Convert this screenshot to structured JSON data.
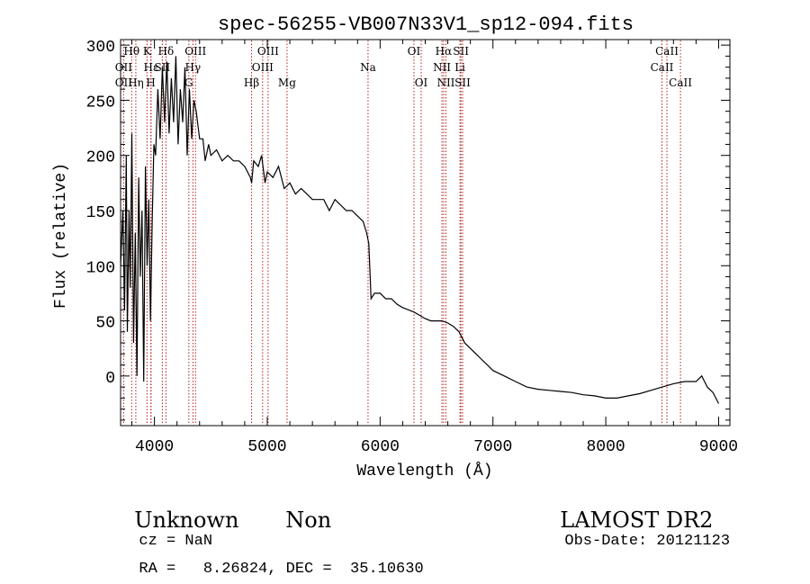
{
  "chart_data": {
    "type": "line",
    "title": "spec-56255-VB007N33V1_sp12-094.fits",
    "xlabel": "Wavelength (Å)",
    "ylabel": "Flux (relative)",
    "xlim": [
      3700,
      9100
    ],
    "ylim": [
      -45,
      305
    ],
    "xticks": [
      4000,
      5000,
      6000,
      7000,
      8000,
      9000
    ],
    "yticks": [
      0,
      50,
      100,
      150,
      200,
      250,
      300
    ],
    "grid": false,
    "line_color": "#000000",
    "marker_color": "#b22222",
    "series": [
      {
        "points": [
          [
            3700,
            100
          ],
          [
            3720,
            150
          ],
          [
            3735,
            60
          ],
          [
            3750,
            200
          ],
          [
            3760,
            40
          ],
          [
            3775,
            150
          ],
          [
            3785,
            80
          ],
          [
            3800,
            220
          ],
          [
            3815,
            30
          ],
          [
            3830,
            130
          ],
          [
            3845,
            0
          ],
          [
            3860,
            180
          ],
          [
            3875,
            90
          ],
          [
            3890,
            150
          ],
          [
            3905,
            -5
          ],
          [
            3920,
            190
          ],
          [
            3935,
            100
          ],
          [
            3950,
            160
          ],
          [
            3965,
            50
          ],
          [
            3980,
            140
          ],
          [
            3995,
            210
          ],
          [
            4010,
            200
          ],
          [
            4030,
            260
          ],
          [
            4050,
            215
          ],
          [
            4070,
            280
          ],
          [
            4090,
            230
          ],
          [
            4110,
            285
          ],
          [
            4130,
            220
          ],
          [
            4150,
            270
          ],
          [
            4170,
            230
          ],
          [
            4190,
            290
          ],
          [
            4210,
            210
          ],
          [
            4230,
            260
          ],
          [
            4250,
            230
          ],
          [
            4270,
            280
          ],
          [
            4290,
            200
          ],
          [
            4310,
            260
          ],
          [
            4330,
            215
          ],
          [
            4350,
            250
          ],
          [
            4370,
            240
          ],
          [
            4400,
            215
          ],
          [
            4430,
            215
          ],
          [
            4450,
            195
          ],
          [
            4480,
            210
          ],
          [
            4500,
            200
          ],
          [
            4550,
            205
          ],
          [
            4600,
            195
          ],
          [
            4650,
            200
          ],
          [
            4700,
            195
          ],
          [
            4750,
            195
          ],
          [
            4800,
            190
          ],
          [
            4850,
            180
          ],
          [
            4861,
            175
          ],
          [
            4880,
            195
          ],
          [
            4920,
            190
          ],
          [
            4950,
            200
          ],
          [
            4980,
            175
          ],
          [
            5000,
            185
          ],
          [
            5050,
            180
          ],
          [
            5100,
            190
          ],
          [
            5150,
            170
          ],
          [
            5200,
            175
          ],
          [
            5250,
            165
          ],
          [
            5300,
            170
          ],
          [
            5350,
            165
          ],
          [
            5400,
            160
          ],
          [
            5450,
            160
          ],
          [
            5500,
            160
          ],
          [
            5550,
            150
          ],
          [
            5600,
            160
          ],
          [
            5650,
            155
          ],
          [
            5700,
            150
          ],
          [
            5750,
            150
          ],
          [
            5800,
            145
          ],
          [
            5850,
            140
          ],
          [
            5880,
            130
          ],
          [
            5900,
            120
          ],
          [
            5920,
            70
          ],
          [
            5950,
            75
          ],
          [
            6000,
            75
          ],
          [
            6050,
            70
          ],
          [
            6100,
            70
          ],
          [
            6150,
            65
          ],
          [
            6200,
            62
          ],
          [
            6250,
            60
          ],
          [
            6300,
            58
          ],
          [
            6350,
            55
          ],
          [
            6400,
            52
          ],
          [
            6450,
            50
          ],
          [
            6500,
            50
          ],
          [
            6550,
            50
          ],
          [
            6600,
            48
          ],
          [
            6650,
            45
          ],
          [
            6700,
            40
          ],
          [
            6750,
            30
          ],
          [
            6800,
            25
          ],
          [
            6850,
            20
          ],
          [
            6900,
            15
          ],
          [
            6950,
            10
          ],
          [
            7000,
            5
          ],
          [
            7100,
            0
          ],
          [
            7200,
            -5
          ],
          [
            7300,
            -10
          ],
          [
            7400,
            -12
          ],
          [
            7500,
            -13
          ],
          [
            7600,
            -14
          ],
          [
            7700,
            -15
          ],
          [
            7800,
            -17
          ],
          [
            7900,
            -18
          ],
          [
            8000,
            -20
          ],
          [
            8100,
            -20
          ],
          [
            8200,
            -18
          ],
          [
            8300,
            -16
          ],
          [
            8400,
            -13
          ],
          [
            8500,
            -10
          ],
          [
            8600,
            -7
          ],
          [
            8700,
            -5
          ],
          [
            8800,
            -5
          ],
          [
            8850,
            0
          ],
          [
            8900,
            -10
          ],
          [
            8950,
            -15
          ],
          [
            9000,
            -25
          ]
        ]
      }
    ],
    "lines": [
      {
        "label": "Hθ",
        "x": 3798,
        "row": 0
      },
      {
        "label": "OII",
        "x": 3727,
        "row": 1
      },
      {
        "label": "OII",
        "x": 3727,
        "row": 2
      },
      {
        "label": "Hη",
        "x": 3835,
        "row": 2
      },
      {
        "label": "K",
        "x": 3934,
        "row": 0
      },
      {
        "label": "H",
        "x": 3968,
        "row": 2
      },
      {
        "label": "Hε",
        "x": 3970,
        "row": 1
      },
      {
        "label": "SII",
        "x": 4070,
        "row": 1
      },
      {
        "label": "Hδ",
        "x": 4102,
        "row": 0
      },
      {
        "label": "OIII",
        "x": 4364,
        "row": 0
      },
      {
        "label": "Hγ",
        "x": 4341,
        "row": 1
      },
      {
        "label": "G",
        "x": 4305,
        "row": 2
      },
      {
        "label": "Hβ",
        "x": 4861,
        "row": 2
      },
      {
        "label": "OIII",
        "x": 5007,
        "row": 0
      },
      {
        "label": "OIII",
        "x": 4959,
        "row": 1
      },
      {
        "label": "Mg",
        "x": 5175,
        "row": 2
      },
      {
        "label": "Na",
        "x": 5893,
        "row": 1
      },
      {
        "label": "OI",
        "x": 6300,
        "row": 0
      },
      {
        "label": "OI",
        "x": 6364,
        "row": 2
      },
      {
        "label": "Hα",
        "x": 6563,
        "row": 0
      },
      {
        "label": "NII",
        "x": 6548,
        "row": 1
      },
      {
        "label": "NII",
        "x": 6583,
        "row": 2
      },
      {
        "label": "SII",
        "x": 6716,
        "row": 0
      },
      {
        "label": "Li",
        "x": 6708,
        "row": 1
      },
      {
        "label": "SII",
        "x": 6731,
        "row": 2
      },
      {
        "label": "CaII",
        "x": 8542,
        "row": 0
      },
      {
        "label": "CaII",
        "x": 8498,
        "row": 1
      },
      {
        "label": "CaII",
        "x": 8662,
        "row": 2
      }
    ]
  },
  "info": {
    "class": "Unknown",
    "subclass": "Non",
    "cz": "cz = NaN",
    "coords": "RA =   8.26824, DEC =  35.10630",
    "survey": "LAMOST DR2",
    "obsdate": "Obs-Date: 20121123"
  }
}
